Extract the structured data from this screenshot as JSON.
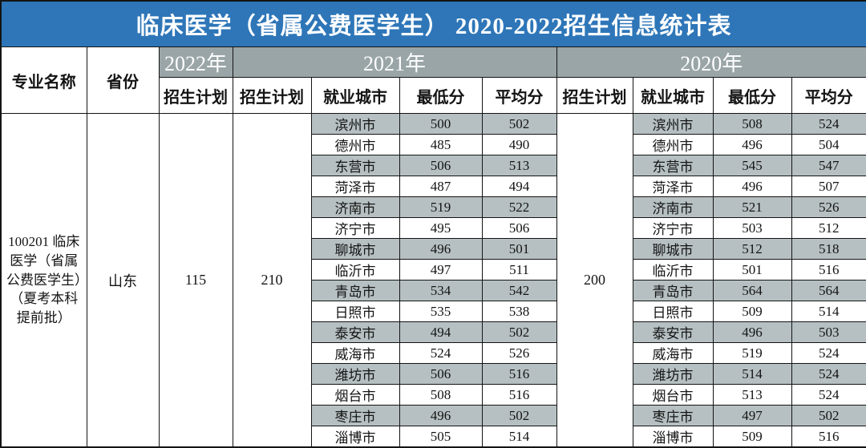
{
  "title": "临床医学（省属公费医学生） 2020-2022招生信息统计表",
  "colors": {
    "title_bg": "#2e76b8",
    "year_header_bg": "#9aa5a8",
    "row_shade": "#b6c0c2"
  },
  "header": {
    "major_label": "专业名称",
    "province_label": "省份",
    "year_2022": "2022年",
    "year_2021": "2021年",
    "year_2020": "2020年",
    "plan_label_2022": "招生计划",
    "plan_label_2021": "招生计划",
    "plan_label_2020": "招生计划",
    "city_label_2021": "就业城市",
    "min_label_2021": "最低分",
    "avg_label_2021": "平均分",
    "city_label_2020": "就业城市",
    "min_label_2020": "最低分",
    "avg_label_2020": "平均分"
  },
  "record": {
    "major": "100201 临床医学（省属公费医学生）（夏考本科提前批）",
    "province": "山东",
    "plan_2022": "115",
    "plan_2021": "210",
    "plan_2020": "200"
  },
  "rows": [
    {
      "city": "滨州市",
      "min_2021": "500",
      "avg_2021": "502",
      "min_2020": "508",
      "avg_2020": "524"
    },
    {
      "city": "德州市",
      "min_2021": "485",
      "avg_2021": "490",
      "min_2020": "496",
      "avg_2020": "504"
    },
    {
      "city": "东营市",
      "min_2021": "506",
      "avg_2021": "513",
      "min_2020": "545",
      "avg_2020": "547"
    },
    {
      "city": "菏泽市",
      "min_2021": "487",
      "avg_2021": "494",
      "min_2020": "496",
      "avg_2020": "507"
    },
    {
      "city": "济南市",
      "min_2021": "519",
      "avg_2021": "522",
      "min_2020": "521",
      "avg_2020": "526"
    },
    {
      "city": "济宁市",
      "min_2021": "495",
      "avg_2021": "506",
      "min_2020": "503",
      "avg_2020": "512"
    },
    {
      "city": "聊城市",
      "min_2021": "496",
      "avg_2021": "501",
      "min_2020": "512",
      "avg_2020": "518"
    },
    {
      "city": "临沂市",
      "min_2021": "497",
      "avg_2021": "511",
      "min_2020": "501",
      "avg_2020": "516"
    },
    {
      "city": "青岛市",
      "min_2021": "534",
      "avg_2021": "542",
      "min_2020": "564",
      "avg_2020": "564"
    },
    {
      "city": "日照市",
      "min_2021": "535",
      "avg_2021": "538",
      "min_2020": "509",
      "avg_2020": "514"
    },
    {
      "city": "泰安市",
      "min_2021": "494",
      "avg_2021": "502",
      "min_2020": "496",
      "avg_2020": "503"
    },
    {
      "city": "威海市",
      "min_2021": "524",
      "avg_2021": "526",
      "min_2020": "519",
      "avg_2020": "524"
    },
    {
      "city": "潍坊市",
      "min_2021": "506",
      "avg_2021": "516",
      "min_2020": "514",
      "avg_2020": "524"
    },
    {
      "city": "烟台市",
      "min_2021": "508",
      "avg_2021": "516",
      "min_2020": "513",
      "avg_2020": "524"
    },
    {
      "city": "枣庄市",
      "min_2021": "496",
      "avg_2021": "502",
      "min_2020": "497",
      "avg_2020": "502"
    },
    {
      "city": "淄博市",
      "min_2021": "505",
      "avg_2021": "514",
      "min_2020": "509",
      "avg_2020": "516"
    }
  ]
}
